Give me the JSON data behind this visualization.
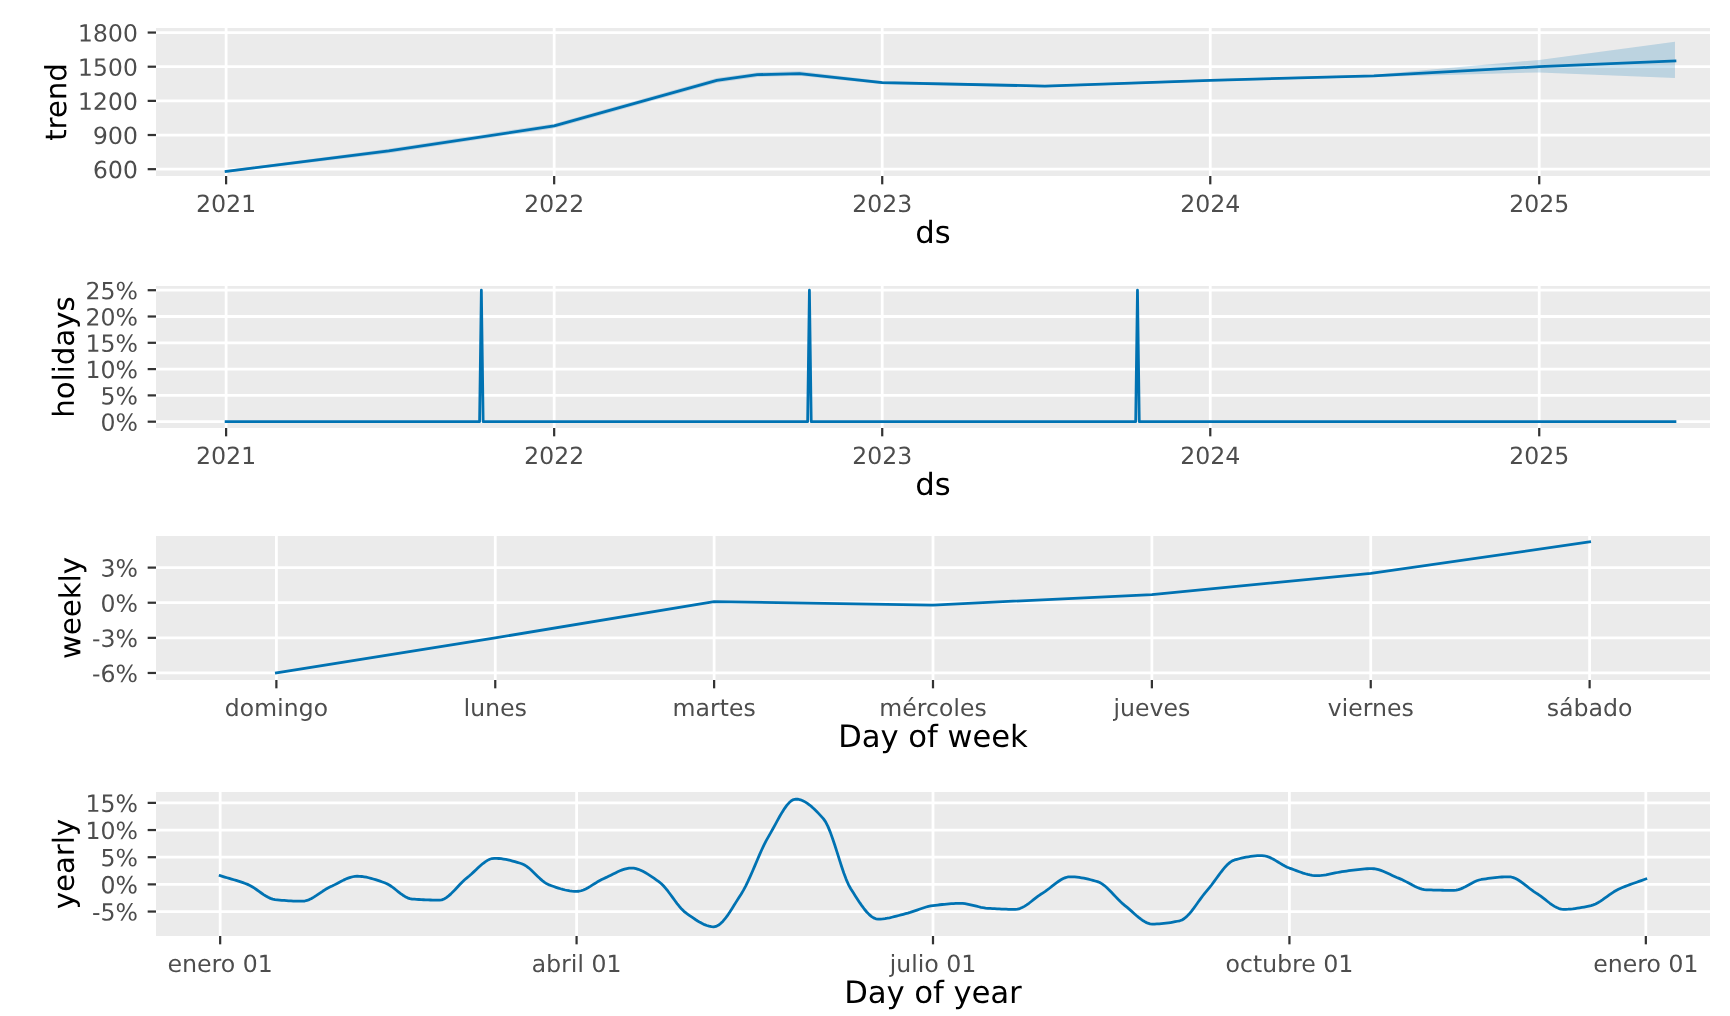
{
  "chart_data": [
    {
      "type": "line",
      "ylabel": "trend",
      "xlabel": "ds",
      "grid": true,
      "xlim": [
        "2020-10-15",
        "2025-07-10"
      ],
      "xticks": [
        "2021",
        "2022",
        "2023",
        "2024",
        "2025"
      ],
      "ylim": [
        540,
        1840
      ],
      "yticks": [
        600,
        900,
        1200,
        1500,
        1800
      ],
      "series": [
        {
          "color": "#0072b2",
          "x": [
            "2021-01-01",
            "2021-07-01",
            "2022-01-01",
            "2022-07-01",
            "2022-08-15",
            "2022-10-01",
            "2023-01-01",
            "2023-07-01",
            "2024-01-01",
            "2024-07-01",
            "2025-01-01",
            "2025-06-01"
          ],
          "values": [
            580,
            760,
            980,
            1380,
            1430,
            1440,
            1360,
            1330,
            1380,
            1420,
            1500,
            1550
          ],
          "lower": [
            570,
            740,
            960,
            1360,
            1410,
            1420,
            1345,
            1320,
            1370,
            1410,
            1450,
            1400
          ],
          "upper": [
            590,
            780,
            1000,
            1400,
            1450,
            1460,
            1375,
            1340,
            1390,
            1430,
            1560,
            1720
          ]
        }
      ]
    },
    {
      "type": "line",
      "ylabel": "holidays",
      "xlabel": "ds",
      "grid": true,
      "xlim": [
        "2020-10-15",
        "2025-07-10"
      ],
      "xticks": [
        "2021",
        "2022",
        "2023",
        "2024",
        "2025"
      ],
      "ylim": [
        -1.2,
        25.8
      ],
      "yticks": [
        {
          "value": 0,
          "label": "0%"
        },
        {
          "value": 5,
          "label": "5%"
        },
        {
          "value": 10,
          "label": "10%"
        },
        {
          "value": 15,
          "label": "15%"
        },
        {
          "value": 20,
          "label": "20%"
        },
        {
          "value": 25,
          "label": "25%"
        }
      ],
      "series": [
        {
          "color": "#0072b2",
          "x": [
            "2021-01-01",
            "2021-10-10",
            "2021-10-12",
            "2021-10-14",
            "2022-10-10",
            "2022-10-12",
            "2022-10-14",
            "2023-10-10",
            "2023-10-12",
            "2023-10-14",
            "2025-06-01"
          ],
          "values": [
            0,
            0,
            25,
            0,
            0,
            25,
            0,
            0,
            25,
            0,
            0
          ]
        }
      ]
    },
    {
      "type": "line",
      "ylabel": "weekly",
      "xlabel": "Day of week",
      "grid": true,
      "categories": [
        "domingo",
        "lunes",
        "martes",
        "mércoles",
        "jueves",
        "viernes",
        "sábado"
      ],
      "ylim": [
        -6.6,
        5.7
      ],
      "yticks": [
        {
          "value": -6,
          "label": "-6%"
        },
        {
          "value": -3,
          "label": "-3%"
        },
        {
          "value": 0,
          "label": "0%"
        },
        {
          "value": 3,
          "label": "3%"
        }
      ],
      "series": [
        {
          "color": "#0072b2",
          "values": [
            -6.0,
            -3.0,
            0.1,
            -0.2,
            0.7,
            2.5,
            5.2
          ]
        }
      ]
    },
    {
      "type": "line",
      "ylabel": "yearly",
      "xlabel": "Day of year",
      "grid": true,
      "categories": [
        "enero 01",
        null,
        null,
        null,
        null,
        null,
        null,
        null,
        null,
        null,
        null,
        null,
        null,
        "abril 01",
        null,
        null,
        null,
        null,
        null,
        null,
        null,
        null,
        null,
        null,
        null,
        null,
        "julio 01",
        null,
        null,
        null,
        null,
        null,
        null,
        null,
        null,
        null,
        null,
        null,
        null,
        "octubre 01",
        null,
        null,
        null,
        null,
        null,
        null,
        null,
        null,
        null,
        null,
        null,
        null,
        "enero 01"
      ],
      "ylim": [
        -9.5,
        17
      ],
      "yticks": [
        {
          "value": -5,
          "label": "-5%"
        },
        {
          "value": 0,
          "label": "0%"
        },
        {
          "value": 5,
          "label": "5%"
        },
        {
          "value": 10,
          "label": "10%"
        },
        {
          "value": 15,
          "label": "15%"
        }
      ],
      "series": [
        {
          "color": "#0072b2",
          "values": [
            1.6,
            0.0,
            -2.8,
            -3.1,
            -0.5,
            1.5,
            0.3,
            -2.7,
            -2.9,
            1.2,
            4.8,
            3.8,
            -0.1,
            -1.3,
            1.1,
            3.0,
            0.5,
            -5.3,
            -7.8,
            -1.8,
            8.8,
            15.7,
            12.1,
            -0.8,
            -6.4,
            -5.4,
            -3.9,
            -3.5,
            -4.4,
            -4.6,
            -1.6,
            1.4,
            0.5,
            -3.9,
            -7.3,
            -6.7,
            -1.1,
            4.5,
            5.3,
            3.0,
            1.6,
            2.4,
            2.9,
            1.1,
            -1.0,
            -1.1,
            0.9,
            1.4,
            -1.6,
            -4.6,
            -3.9,
            -0.9,
            1.0
          ]
        }
      ]
    }
  ]
}
